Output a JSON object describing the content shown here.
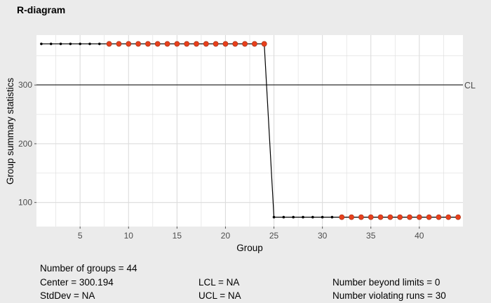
{
  "chart_data": {
    "type": "line",
    "title": "R-diagram",
    "xlabel": "Group",
    "ylabel": "Group summary statistics",
    "xlim": [
      0.5,
      44.5
    ],
    "ylim": [
      59,
      385
    ],
    "xticks": [
      5,
      10,
      15,
      20,
      25,
      30,
      35,
      40
    ],
    "yticks": [
      100,
      200,
      300
    ],
    "center_line": {
      "value": 300.194,
      "label": "CL"
    },
    "series": [
      {
        "x": [
          1,
          2,
          3,
          4,
          5,
          6,
          7,
          8,
          9,
          10,
          11,
          12,
          13,
          14,
          15,
          16,
          17,
          18,
          19,
          20,
          21,
          22,
          23,
          24,
          25,
          26,
          27,
          28,
          29,
          30,
          31,
          32,
          33,
          34,
          35,
          36,
          37,
          38,
          39,
          40,
          41,
          42,
          43,
          44
        ],
        "values": [
          370,
          370,
          370,
          370,
          370,
          370,
          370,
          370,
          370,
          370,
          370,
          370,
          370,
          370,
          370,
          370,
          370,
          370,
          370,
          370,
          370,
          370,
          370,
          370,
          75,
          75,
          75,
          75,
          75,
          75,
          75,
          75,
          75,
          75,
          75,
          75,
          75,
          75,
          75,
          75,
          75,
          75,
          75,
          75
        ],
        "violating_runs": [
          8,
          9,
          10,
          11,
          12,
          13,
          14,
          15,
          16,
          17,
          18,
          19,
          20,
          21,
          22,
          23,
          24,
          32,
          33,
          34,
          35,
          36,
          37,
          38,
          39,
          40,
          41,
          42,
          43,
          44
        ]
      }
    ],
    "colors": {
      "line": "#000000",
      "violation": "#e8401c",
      "panel": "#ffffff",
      "grid": "#dcdcdc"
    }
  },
  "stats": {
    "groups": "Number of groups = 44",
    "center": "Center = 300.194",
    "stddev": "StdDev = NA",
    "lcl": "LCL = NA",
    "ucl": "UCL = NA",
    "beyond": "Number beyond limits = 0",
    "runs": "Number violating runs = 30"
  }
}
